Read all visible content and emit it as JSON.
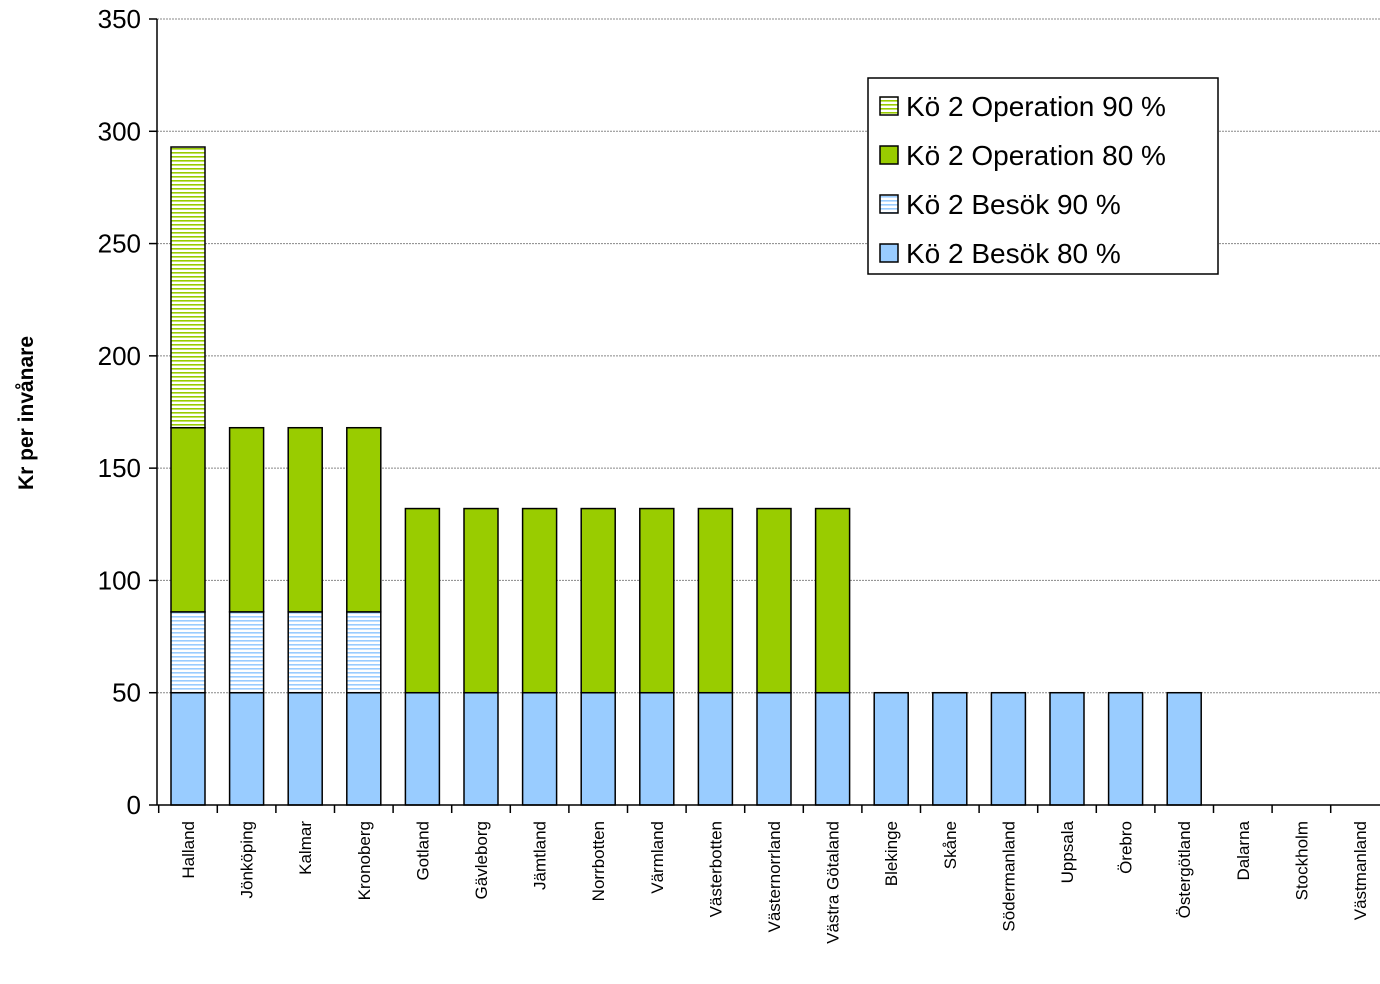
{
  "chart_data": {
    "type": "bar",
    "stacked": true,
    "ylabel": "Kr per invånare",
    "xlabel": "",
    "title": "",
    "ylim": [
      0,
      350
    ],
    "yticks": [
      0,
      50,
      100,
      150,
      200,
      250,
      300,
      350
    ],
    "grid": true,
    "legend_position": "top-right",
    "categories": [
      "Halland",
      "Jönköping",
      "Kalmar",
      "Kronoberg",
      "Gotland",
      "Gävleborg",
      "Jämtland",
      "Norrbotten",
      "Värmland",
      "Västerbotten",
      "Västernorrland",
      "Västra Götaland",
      "Blekinge",
      "Skåne",
      "Södermanland",
      "Uppsala",
      "Örebro",
      "Östergötland",
      "Dalarna",
      "Stockholm",
      "Västmanland"
    ],
    "series": [
      {
        "name": "Kö 2 Besök 80 %",
        "color": "#99ccff",
        "pattern": "solid",
        "values": [
          50,
          50,
          50,
          50,
          50,
          50,
          50,
          50,
          50,
          50,
          50,
          50,
          50,
          50,
          50,
          50,
          50,
          50,
          0,
          0,
          0
        ]
      },
      {
        "name": "Kö 2 Besök 90 %",
        "color": "#99ccff",
        "pattern": "hatched",
        "values": [
          36,
          36,
          36,
          36,
          0,
          0,
          0,
          0,
          0,
          0,
          0,
          0,
          0,
          0,
          0,
          0,
          0,
          0,
          0,
          0,
          0
        ]
      },
      {
        "name": "Kö 2 Operation 80 %",
        "color": "#99cc00",
        "pattern": "solid",
        "values": [
          82,
          82,
          82,
          82,
          82,
          82,
          82,
          82,
          82,
          82,
          82,
          82,
          0,
          0,
          0,
          0,
          0,
          0,
          0,
          0,
          0
        ]
      },
      {
        "name": "Kö 2 Operation 90 %",
        "color": "#99cc00",
        "pattern": "hatched",
        "values": [
          125,
          0,
          0,
          0,
          0,
          0,
          0,
          0,
          0,
          0,
          0,
          0,
          0,
          0,
          0,
          0,
          0,
          0,
          0,
          0,
          0
        ]
      }
    ],
    "legend_order": [
      "Kö 2 Operation 90 %",
      "Kö 2 Operation 80 %",
      "Kö 2 Besök 90 %",
      "Kö 2 Besök 80 %"
    ]
  }
}
